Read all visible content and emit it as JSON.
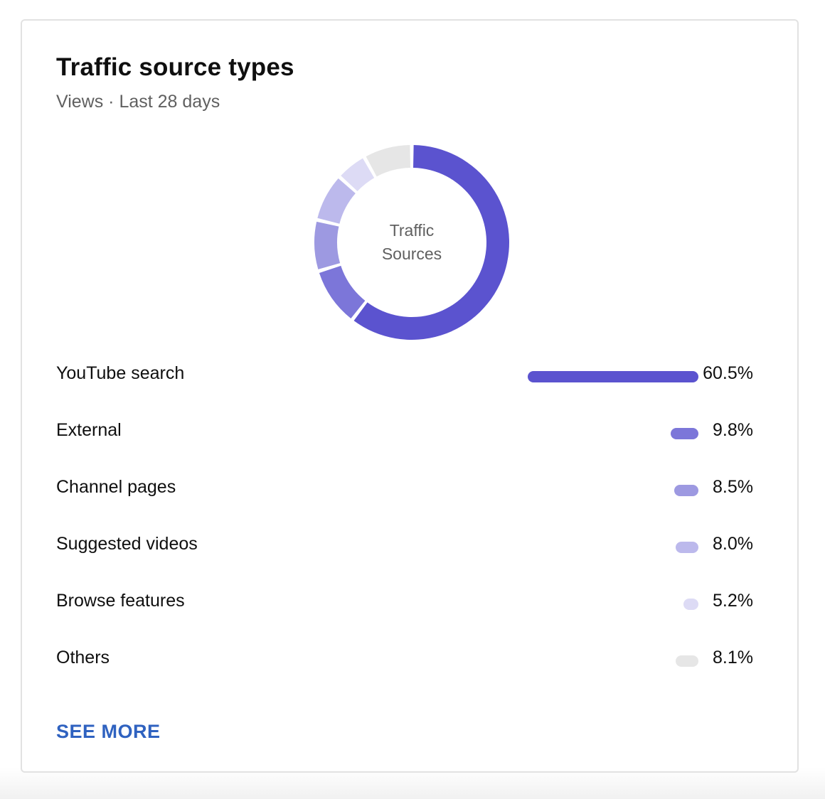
{
  "card": {
    "title": "Traffic source types",
    "subtitle": "Views · Last 28 days",
    "see_more_label": "SEE MORE"
  },
  "donut": {
    "center_line1": "Traffic",
    "center_line2": "Sources"
  },
  "sources": [
    {
      "label": "YouTube search",
      "value": 60.5,
      "display": "60.5%",
      "color": "#5b53cf"
    },
    {
      "label": "External",
      "value": 9.8,
      "display": "9.8%",
      "color": "#7c76d9"
    },
    {
      "label": "Channel pages",
      "value": 8.5,
      "display": "8.5%",
      "color": "#9d99e1"
    },
    {
      "label": "Suggested videos",
      "value": 8.0,
      "display": "8.0%",
      "color": "#bcb9ec"
    },
    {
      "label": "Browse features",
      "value": 5.2,
      "display": "5.2%",
      "color": "#dddbf5"
    },
    {
      "label": "Others",
      "value": 8.1,
      "display": "8.1%",
      "color": "#e6e6e6"
    }
  ]
}
